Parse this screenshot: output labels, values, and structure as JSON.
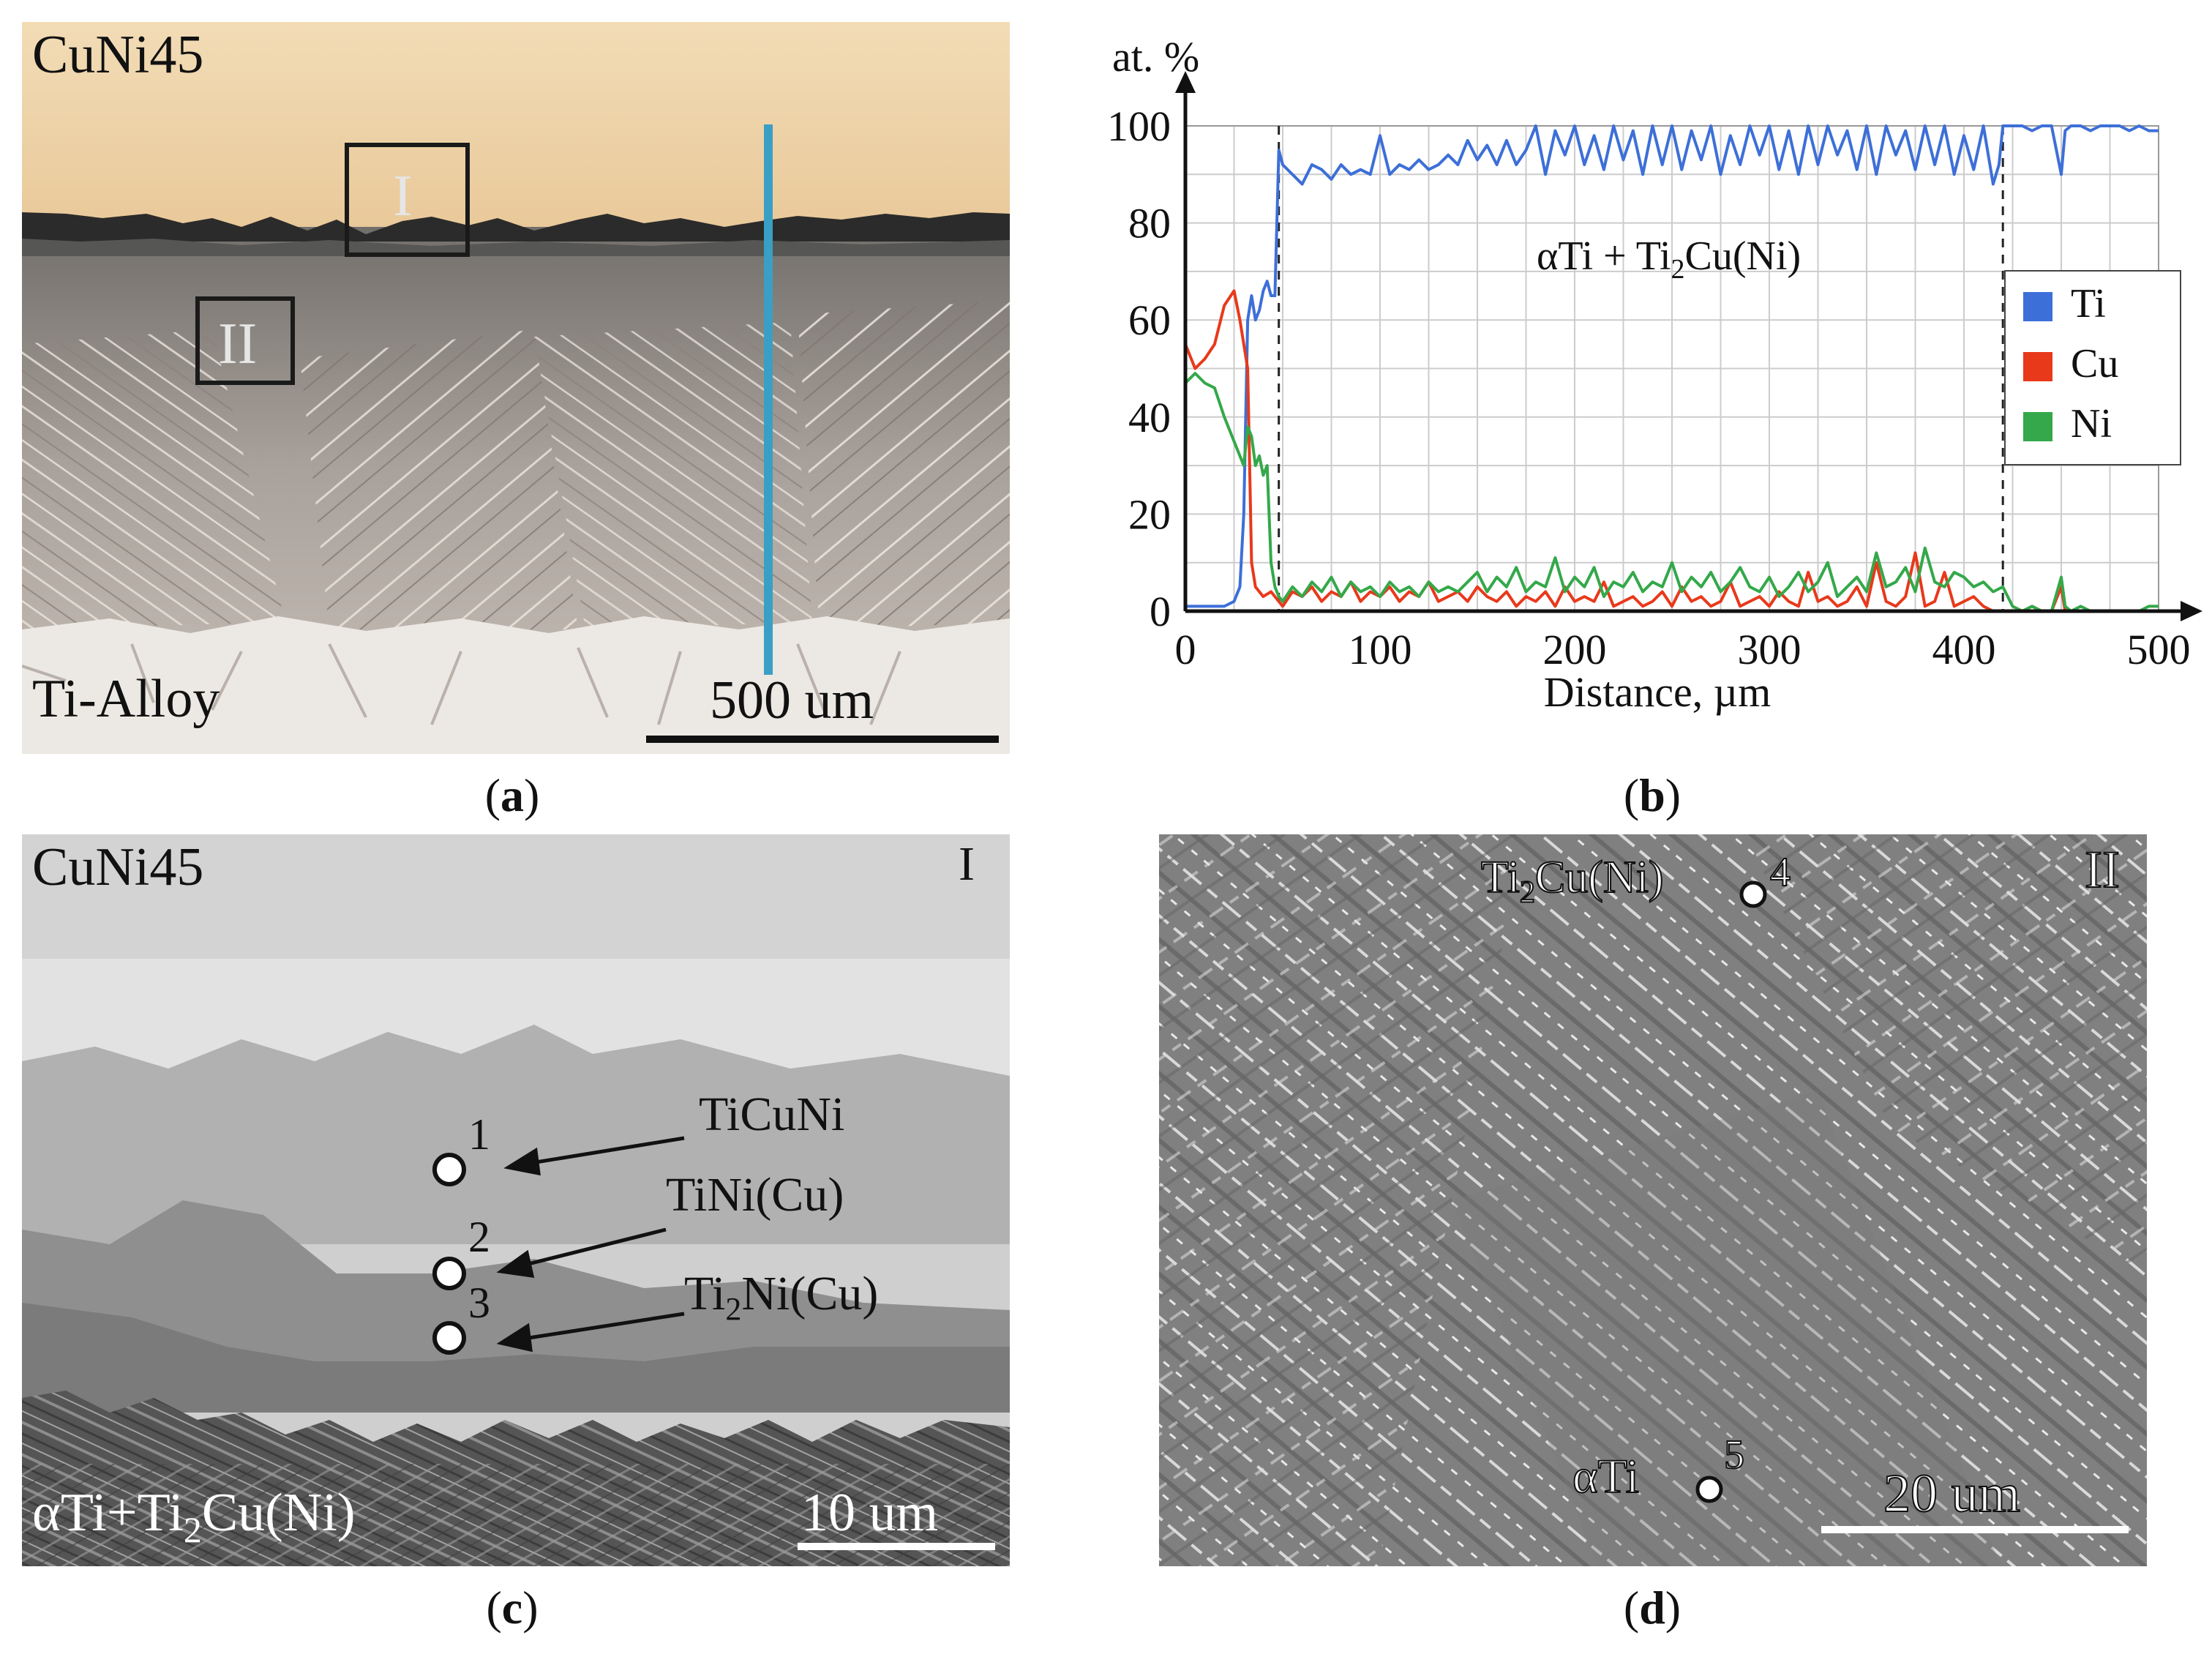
{
  "panel_a": {
    "top_label": "CuNi45",
    "bottom_label": "Ti-Alloy",
    "box_I": "I",
    "box_II": "II",
    "scale": "500 um"
  },
  "panel_c": {
    "top_label": "CuNi45",
    "corner_label": "I",
    "bottom_label": "αTi+Ti",
    "bottom_label_sub": "2",
    "bottom_label_end": "Cu(Ni)",
    "scale": "10 um",
    "points": [
      {
        "num": "1",
        "phase": "TiCuNi"
      },
      {
        "num": "2",
        "phase": "TiNi(Cu)"
      },
      {
        "num": "3",
        "phase_pre": "Ti",
        "phase_sub": "2",
        "phase_post": "Ni(Cu)"
      }
    ]
  },
  "panel_d": {
    "corner_label": "II",
    "scale": "20 um",
    "point4": {
      "num": "4",
      "pre": "Ti",
      "sub": "2",
      "post": "Cu(Ni)"
    },
    "point5": {
      "num": "5",
      "label": "αTi"
    }
  },
  "captions": {
    "a": "a",
    "b": "b",
    "c": "c",
    "d": "d"
  },
  "chart_data": {
    "type": "line",
    "ylabel": "at. %",
    "xlabel": "Distance, µm",
    "xlim": [
      0,
      500
    ],
    "ylim": [
      0,
      100
    ],
    "xticks": [
      0,
      100,
      200,
      300,
      400,
      500
    ],
    "yticks": [
      0,
      20,
      40,
      60,
      80,
      100
    ],
    "annotation_pre": "αTi + Ti",
    "annotation_sub": "2",
    "annotation_post": "Cu(Ni)",
    "legend_position": "right",
    "dashed_x": [
      48,
      420
    ],
    "colors": {
      "Ti": "#3d6fd8",
      "Cu": "#e8391b",
      "Ni": "#34a84a"
    },
    "series": [
      {
        "name": "Ti",
        "x": [
          0,
          10,
          20,
          25,
          28,
          30,
          32,
          34,
          36,
          38,
          40,
          42,
          44,
          46,
          48,
          50,
          55,
          60,
          65,
          70,
          75,
          80,
          85,
          90,
          95,
          100,
          105,
          110,
          115,
          120,
          125,
          130,
          135,
          140,
          145,
          150,
          155,
          160,
          165,
          170,
          175,
          180,
          185,
          190,
          195,
          200,
          205,
          210,
          215,
          220,
          225,
          230,
          235,
          240,
          245,
          250,
          255,
          260,
          265,
          270,
          275,
          280,
          285,
          290,
          295,
          300,
          305,
          310,
          315,
          320,
          325,
          330,
          335,
          340,
          345,
          350,
          355,
          360,
          365,
          370,
          375,
          380,
          385,
          390,
          395,
          400,
          405,
          410,
          415,
          418,
          420,
          425,
          430,
          435,
          440,
          445,
          450,
          452,
          455,
          460,
          465,
          470,
          475,
          480,
          485,
          490,
          495,
          500
        ],
        "y": [
          1,
          1,
          1,
          2,
          5,
          20,
          60,
          65,
          60,
          62,
          66,
          68,
          65,
          65,
          95,
          92,
          90,
          88,
          92,
          91,
          89,
          92,
          90,
          91,
          90,
          98,
          90,
          92,
          91,
          93,
          91,
          92,
          94,
          92,
          97,
          93,
          96,
          92,
          97,
          92,
          95,
          100,
          90,
          99,
          94,
          100,
          92,
          98,
          91,
          100,
          93,
          99,
          90,
          100,
          92,
          100,
          91,
          99,
          93,
          100,
          90,
          98,
          92,
          100,
          94,
          100,
          91,
          99,
          90,
          100,
          92,
          100,
          94,
          99,
          91,
          100,
          90,
          100,
          94,
          99,
          91,
          100,
          92,
          100,
          90,
          98,
          91,
          100,
          88,
          92,
          100,
          100,
          100,
          99,
          100,
          100,
          90,
          99,
          100,
          100,
          99,
          100,
          100,
          100,
          99,
          100,
          99,
          99
        ]
      },
      {
        "name": "Cu",
        "x": [
          0,
          5,
          10,
          15,
          20,
          25,
          28,
          30,
          32,
          34,
          36,
          38,
          40,
          44,
          46,
          48,
          50,
          55,
          60,
          65,
          70,
          75,
          80,
          85,
          90,
          95,
          100,
          105,
          110,
          115,
          120,
          125,
          130,
          135,
          140,
          145,
          150,
          155,
          160,
          165,
          170,
          175,
          180,
          185,
          190,
          195,
          200,
          205,
          210,
          215,
          220,
          225,
          230,
          235,
          240,
          245,
          250,
          255,
          260,
          265,
          270,
          275,
          280,
          285,
          290,
          295,
          300,
          305,
          310,
          315,
          320,
          325,
          330,
          335,
          340,
          345,
          350,
          355,
          360,
          365,
          370,
          375,
          380,
          385,
          390,
          395,
          400,
          405,
          410,
          415,
          420,
          425,
          430,
          435,
          440,
          445,
          450,
          452,
          455,
          460,
          465,
          470,
          475,
          480,
          485,
          490,
          495,
          500
        ],
        "y": [
          55,
          50,
          52,
          55,
          63,
          66,
          60,
          55,
          50,
          10,
          5,
          4,
          3,
          4,
          3,
          2,
          1,
          4,
          3,
          5,
          2,
          4,
          3,
          6,
          2,
          4,
          3,
          5,
          2,
          4,
          3,
          6,
          2,
          3,
          4,
          2,
          5,
          3,
          2,
          4,
          1,
          3,
          2,
          4,
          1,
          5,
          2,
          3,
          2,
          6,
          1,
          2,
          3,
          1,
          2,
          4,
          1,
          5,
          2,
          3,
          1,
          2,
          6,
          1,
          2,
          3,
          1,
          4,
          2,
          1,
          8,
          2,
          3,
          1,
          2,
          5,
          1,
          10,
          2,
          1,
          3,
          12,
          1,
          2,
          8,
          1,
          2,
          3,
          1,
          0,
          0,
          0,
          0,
          1,
          0,
          0,
          5,
          0,
          0,
          0,
          0,
          0,
          0,
          0,
          0,
          0,
          0,
          0
        ]
      },
      {
        "name": "Ni",
        "x": [
          0,
          5,
          10,
          15,
          20,
          25,
          28,
          30,
          32,
          34,
          36,
          38,
          40,
          42,
          44,
          46,
          48,
          50,
          55,
          60,
          65,
          70,
          75,
          80,
          85,
          90,
          95,
          100,
          105,
          110,
          115,
          120,
          125,
          130,
          135,
          140,
          145,
          150,
          155,
          160,
          165,
          170,
          175,
          180,
          185,
          190,
          195,
          200,
          205,
          210,
          215,
          220,
          225,
          230,
          235,
          240,
          245,
          250,
          255,
          260,
          265,
          270,
          275,
          280,
          285,
          290,
          295,
          300,
          305,
          310,
          315,
          320,
          325,
          330,
          335,
          340,
          345,
          350,
          355,
          360,
          365,
          370,
          375,
          380,
          385,
          390,
          395,
          400,
          405,
          410,
          415,
          420,
          425,
          430,
          435,
          440,
          445,
          450,
          452,
          455,
          460,
          465,
          470,
          475,
          480,
          485,
          490,
          495,
          500
        ],
        "y": [
          47,
          49,
          47,
          46,
          40,
          35,
          32,
          30,
          38,
          36,
          30,
          32,
          28,
          30,
          10,
          5,
          3,
          2,
          5,
          3,
          6,
          4,
          7,
          3,
          6,
          4,
          5,
          3,
          6,
          4,
          5,
          3,
          6,
          4,
          5,
          4,
          6,
          8,
          4,
          7,
          5,
          9,
          4,
          6,
          5,
          11,
          4,
          7,
          5,
          9,
          3,
          6,
          5,
          8,
          4,
          6,
          5,
          10,
          4,
          7,
          5,
          8,
          4,
          6,
          9,
          5,
          4,
          7,
          3,
          5,
          8,
          4,
          6,
          10,
          3,
          5,
          7,
          4,
          12,
          5,
          6,
          9,
          4,
          13,
          6,
          5,
          8,
          7,
          5,
          6,
          4,
          5,
          1,
          0,
          1,
          0,
          0,
          7,
          1,
          0,
          1,
          0,
          0,
          0,
          0,
          0,
          0,
          1,
          1
        ]
      }
    ]
  }
}
